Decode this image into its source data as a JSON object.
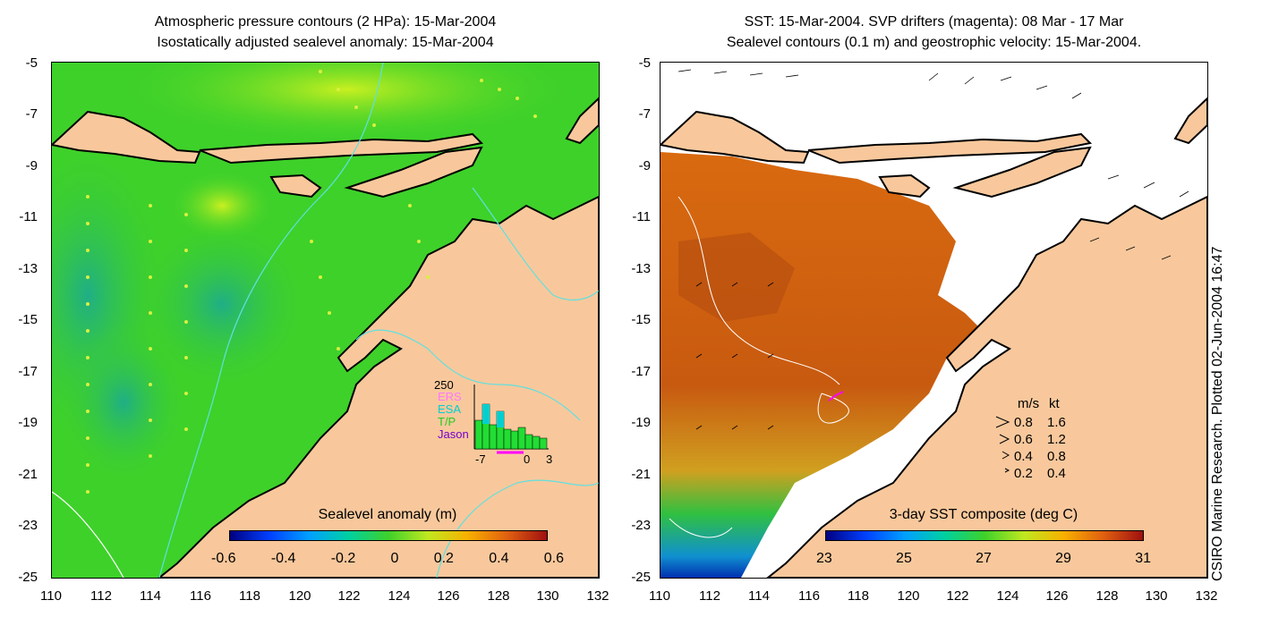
{
  "left_panel": {
    "title_line1": "Atmospheric pressure contours (2 HPa): 15-Mar-2004",
    "title_line2": "Isostatically adjusted sealevel anomaly: 15-Mar-2004",
    "colorbar": {
      "label": "Sealevel anomaly (m)",
      "ticks": [
        "-0.6",
        "-0.4",
        "-0.2",
        "0",
        "0.2",
        "0.4",
        "0.6"
      ]
    },
    "inset": {
      "ymax_label": "250",
      "x_ticks": [
        "-7",
        "0",
        "3"
      ],
      "legend": [
        {
          "label": "ERS",
          "color": "#ff77ff"
        },
        {
          "label": "ESA",
          "color": "#00d0d0"
        },
        {
          "label": "T/P",
          "color": "#22cc22"
        },
        {
          "label": "Jason",
          "color": "#7700cc"
        }
      ]
    }
  },
  "right_panel": {
    "title_line1": "SST: 15-Mar-2004. SVP drifters (magenta): 08 Mar - 17 Mar",
    "title_line2": "Sealevel contours (0.1 m) and geostrophic velocity: 15-Mar-2004.",
    "colorbar": {
      "label": "3-day SST composite (deg C)",
      "ticks": [
        "23",
        "25",
        "27",
        "29",
        "31"
      ]
    },
    "velocity_key": {
      "header_ms": "m/s",
      "header_kt": "kt",
      "rows": [
        {
          "ms": "0.8",
          "kt": "1.6"
        },
        {
          "ms": "0.6",
          "kt": "1.2"
        },
        {
          "ms": "0.4",
          "kt": "0.8"
        },
        {
          "ms": "0.2",
          "kt": "0.4"
        }
      ]
    }
  },
  "axes": {
    "y_ticks": [
      "-5",
      "-7",
      "-9",
      "-11",
      "-13",
      "-15",
      "-17",
      "-19",
      "-21",
      "-23",
      "-25"
    ],
    "x_ticks": [
      "110",
      "112",
      "114",
      "116",
      "118",
      "120",
      "122",
      "124",
      "126",
      "128",
      "130",
      "132"
    ]
  },
  "credit": "CSIRO Marine Research. Plotted 02-Jun-2004 16:47",
  "colors": {
    "land": "#f8c89c",
    "ocean_green": "#3ed12a",
    "ocean_teal": "#28c07a",
    "sst_orange": "#d96a10",
    "coastline": "#000000",
    "drifter": "#ff00ff"
  }
}
